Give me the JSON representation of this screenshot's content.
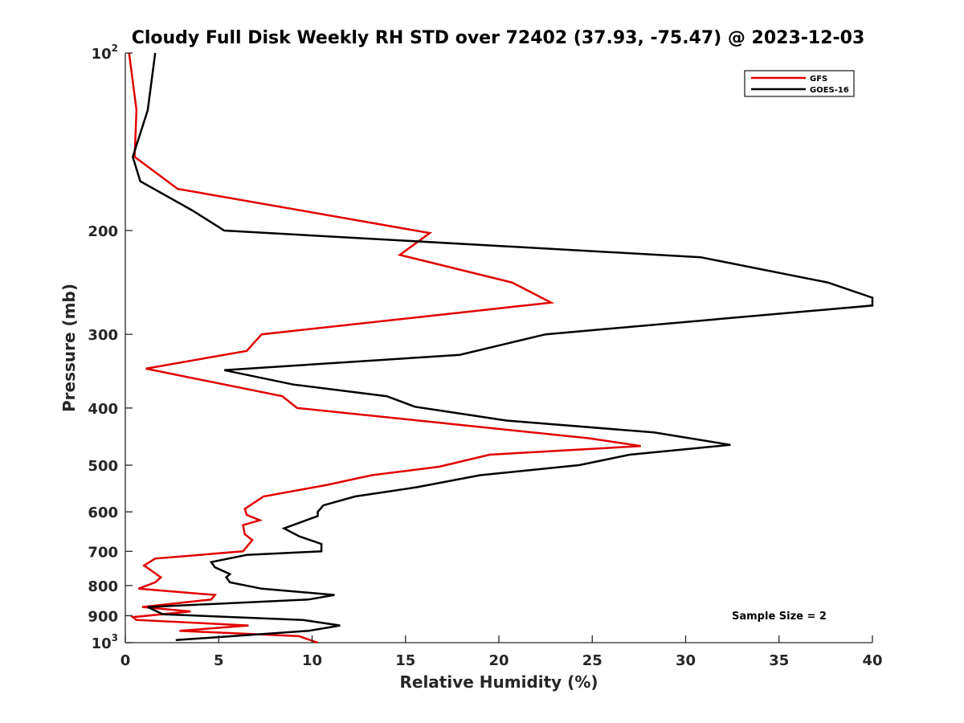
{
  "chart_data": {
    "type": "line",
    "title": "Cloudy Full Disk Weekly RH STD over 72402 (37.93, -75.47) @ 2023-12-03",
    "xlabel": "Relative Humidity (%)",
    "ylabel": "Pressure (mb)",
    "xlim": [
      0,
      40
    ],
    "ylim": [
      100,
      1000
    ],
    "y_scale": "log",
    "y_reversed": true,
    "grid": false,
    "legend_position": "top-right",
    "x_ticks": [
      0,
      5,
      10,
      15,
      20,
      25,
      30,
      35,
      40
    ],
    "y_ticks": [
      {
        "value": 100,
        "label": "10",
        "sup": "2"
      },
      {
        "value": 200,
        "label": "200",
        "sup": ""
      },
      {
        "value": 300,
        "label": "300",
        "sup": ""
      },
      {
        "value": 400,
        "label": "400",
        "sup": ""
      },
      {
        "value": 500,
        "label": "500",
        "sup": ""
      },
      {
        "value": 600,
        "label": "600",
        "sup": ""
      },
      {
        "value": 700,
        "label": "700",
        "sup": ""
      },
      {
        "value": 800,
        "label": "800",
        "sup": ""
      },
      {
        "value": 900,
        "label": "900",
        "sup": ""
      },
      {
        "value": 1000,
        "label": "10",
        "sup": "3"
      }
    ],
    "annotation": "Sample Size = 2",
    "series": [
      {
        "name": "GFS",
        "color": "#e00000",
        "points": [
          [
            0.2,
            100
          ],
          [
            0.6,
            125
          ],
          [
            0.5,
            150
          ],
          [
            2.8,
            170
          ],
          [
            16.3,
            202
          ],
          [
            14.7,
            220
          ],
          [
            20.7,
            245
          ],
          [
            22.8,
            265
          ],
          [
            7.3,
            300
          ],
          [
            6.5,
            320
          ],
          [
            1.1,
            343
          ],
          [
            8.4,
            382
          ],
          [
            9.2,
            400
          ],
          [
            15.7,
            420
          ],
          [
            24.8,
            450
          ],
          [
            27.6,
            464
          ],
          [
            19.5,
            480
          ],
          [
            16.8,
            503
          ],
          [
            13.2,
            520
          ],
          [
            10.8,
            540
          ],
          [
            7.4,
            565
          ],
          [
            6.4,
            593
          ],
          [
            6.5,
            607
          ],
          [
            7.2,
            620
          ],
          [
            6.3,
            632
          ],
          [
            6.4,
            655
          ],
          [
            6.8,
            670
          ],
          [
            6.3,
            700
          ],
          [
            1.6,
            720
          ],
          [
            1.0,
            740
          ],
          [
            1.4,
            755
          ],
          [
            1.9,
            775
          ],
          [
            1.6,
            790
          ],
          [
            0.7,
            810
          ],
          [
            4.8,
            830
          ],
          [
            4.6,
            845
          ],
          [
            0.9,
            870
          ],
          [
            3.5,
            885
          ],
          [
            0.4,
            905
          ],
          [
            0.6,
            915
          ],
          [
            6.6,
            935
          ],
          [
            2.9,
            955
          ],
          [
            9.3,
            975
          ],
          [
            10.3,
            1000
          ]
        ]
      },
      {
        "name": "GOES-16",
        "color": "#000000",
        "points": [
          [
            1.6,
            100
          ],
          [
            1.2,
            125
          ],
          [
            0.4,
            150
          ],
          [
            0.8,
            165
          ],
          [
            3.6,
            185
          ],
          [
            5.3,
            200
          ],
          [
            30.8,
            222
          ],
          [
            37.6,
            245
          ],
          [
            40.0,
            260
          ],
          [
            40.0,
            268
          ],
          [
            22.5,
            300
          ],
          [
            17.9,
            325
          ],
          [
            5.3,
            345
          ],
          [
            9.0,
            365
          ],
          [
            14.0,
            382
          ],
          [
            15.5,
            398
          ],
          [
            20.4,
            420
          ],
          [
            28.3,
            440
          ],
          [
            32.4,
            462
          ],
          [
            27.0,
            480
          ],
          [
            24.3,
            500
          ],
          [
            19.0,
            520
          ],
          [
            15.6,
            545
          ],
          [
            12.3,
            565
          ],
          [
            10.6,
            585
          ],
          [
            10.3,
            600
          ],
          [
            10.3,
            610
          ],
          [
            8.5,
            640
          ],
          [
            9.3,
            660
          ],
          [
            10.5,
            680
          ],
          [
            10.5,
            700
          ],
          [
            6.5,
            710
          ],
          [
            4.6,
            730
          ],
          [
            4.8,
            745
          ],
          [
            5.6,
            765
          ],
          [
            5.4,
            775
          ],
          [
            5.6,
            790
          ],
          [
            7.3,
            810
          ],
          [
            11.2,
            830
          ],
          [
            9.8,
            845
          ],
          [
            1.2,
            870
          ],
          [
            2.0,
            895
          ],
          [
            9.5,
            915
          ],
          [
            11.5,
            935
          ],
          [
            9.8,
            955
          ],
          [
            2.7,
            990
          ]
        ]
      }
    ]
  }
}
